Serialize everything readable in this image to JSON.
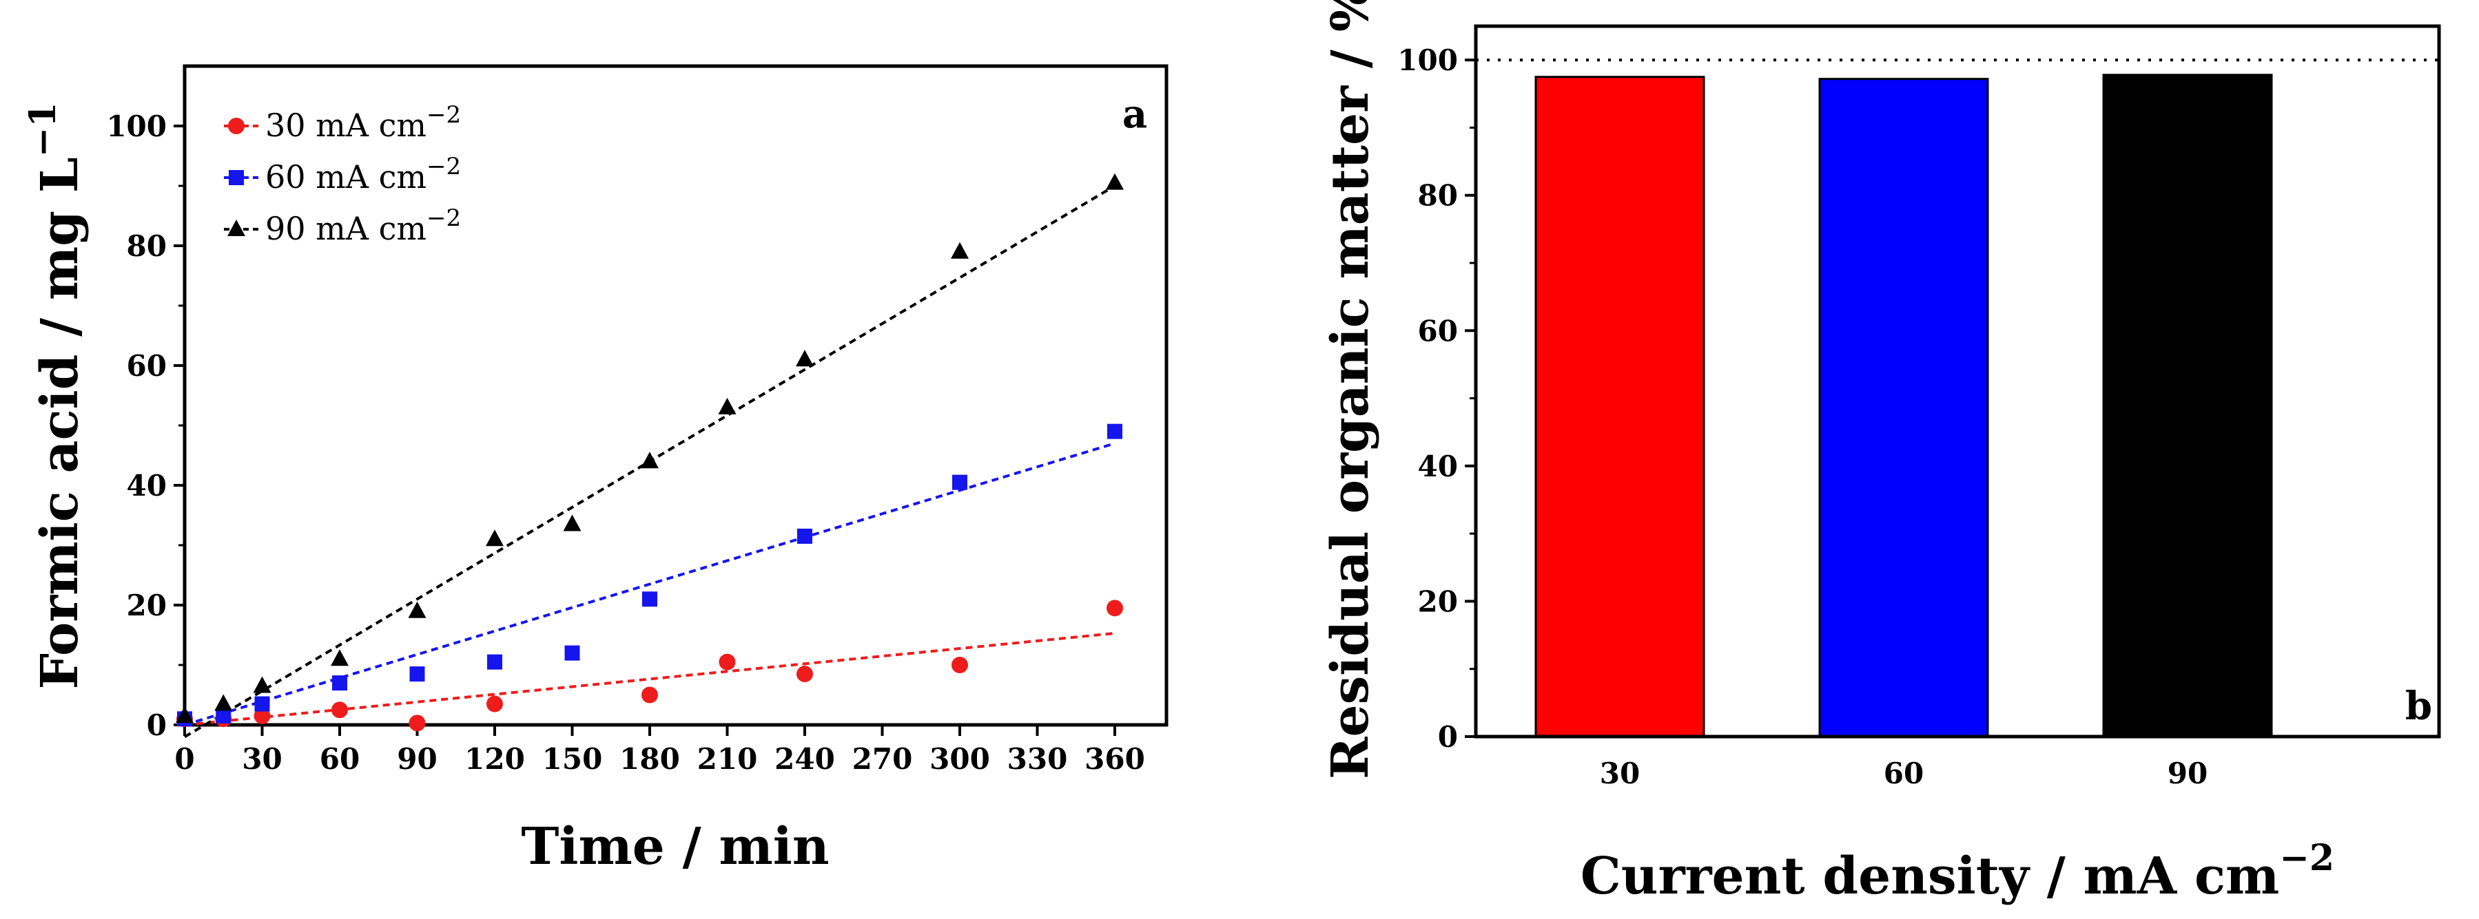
{
  "chart_data": [
    {
      "type": "scatter",
      "panel_label": "a",
      "xlabel": "Time / min",
      "ylabel": "Formic acid / mg L",
      "ylabel_sup": "−1",
      "xlim": [
        0,
        380
      ],
      "ylim": [
        0,
        110
      ],
      "xticks": [
        0,
        30,
        60,
        90,
        120,
        150,
        180,
        210,
        240,
        270,
        300,
        330,
        360
      ],
      "yticks": [
        0,
        20,
        40,
        60,
        80,
        100
      ],
      "legend_position": "top-left",
      "series": [
        {
          "name": "30 mA cm",
          "name_sup": "−2",
          "color": "#ee1c1c",
          "marker": "circle",
          "x": [
            0,
            15,
            30,
            60,
            90,
            120,
            180,
            210,
            240,
            300,
            360
          ],
          "y": [
            1.0,
            1.0,
            1.5,
            2.5,
            0.3,
            3.5,
            5.0,
            10.5,
            8.5,
            10.0,
            19.5
          ],
          "fit": [
            [
              0,
              0.0
            ],
            [
              360,
              15.3
            ]
          ]
        },
        {
          "name": "60 mA cm",
          "name_sup": "−2",
          "color": "#1515ee",
          "marker": "square",
          "x": [
            0,
            15,
            30,
            60,
            90,
            120,
            150,
            180,
            240,
            300,
            360
          ],
          "y": [
            1.0,
            1.5,
            3.5,
            7.0,
            8.5,
            10.5,
            12.0,
            21.0,
            31.5,
            40.5,
            49.0
          ],
          "fit": [
            [
              0,
              0.0
            ],
            [
              360,
              47.0
            ]
          ]
        },
        {
          "name": "90 mA cm",
          "name_sup": "−2",
          "color": "#000000",
          "marker": "triangle",
          "x": [
            0,
            15,
            30,
            60,
            90,
            120,
            150,
            180,
            210,
            240,
            300,
            360
          ],
          "y": [
            1.5,
            3.5,
            6.5,
            11.0,
            19.0,
            31.0,
            33.5,
            44.0,
            53.0,
            61.0,
            79.0,
            90.5
          ],
          "fit": [
            [
              0,
              -2.0
            ],
            [
              360,
              90.0
            ]
          ]
        }
      ]
    },
    {
      "type": "bar",
      "panel_label": "b",
      "xlabel": "Current density / mA cm",
      "xlabel_sup": "−2",
      "ylabel": "Residual organic matter / %",
      "categories": [
        "30",
        "60",
        "90"
      ],
      "values": [
        97.5,
        97.2,
        97.8
      ],
      "colors": [
        "#ff0000",
        "#0000ff",
        "#000000"
      ],
      "ylim": [
        0,
        105
      ],
      "yticks": [
        0,
        20,
        40,
        60,
        80,
        100
      ],
      "reference_line": 100
    }
  ]
}
